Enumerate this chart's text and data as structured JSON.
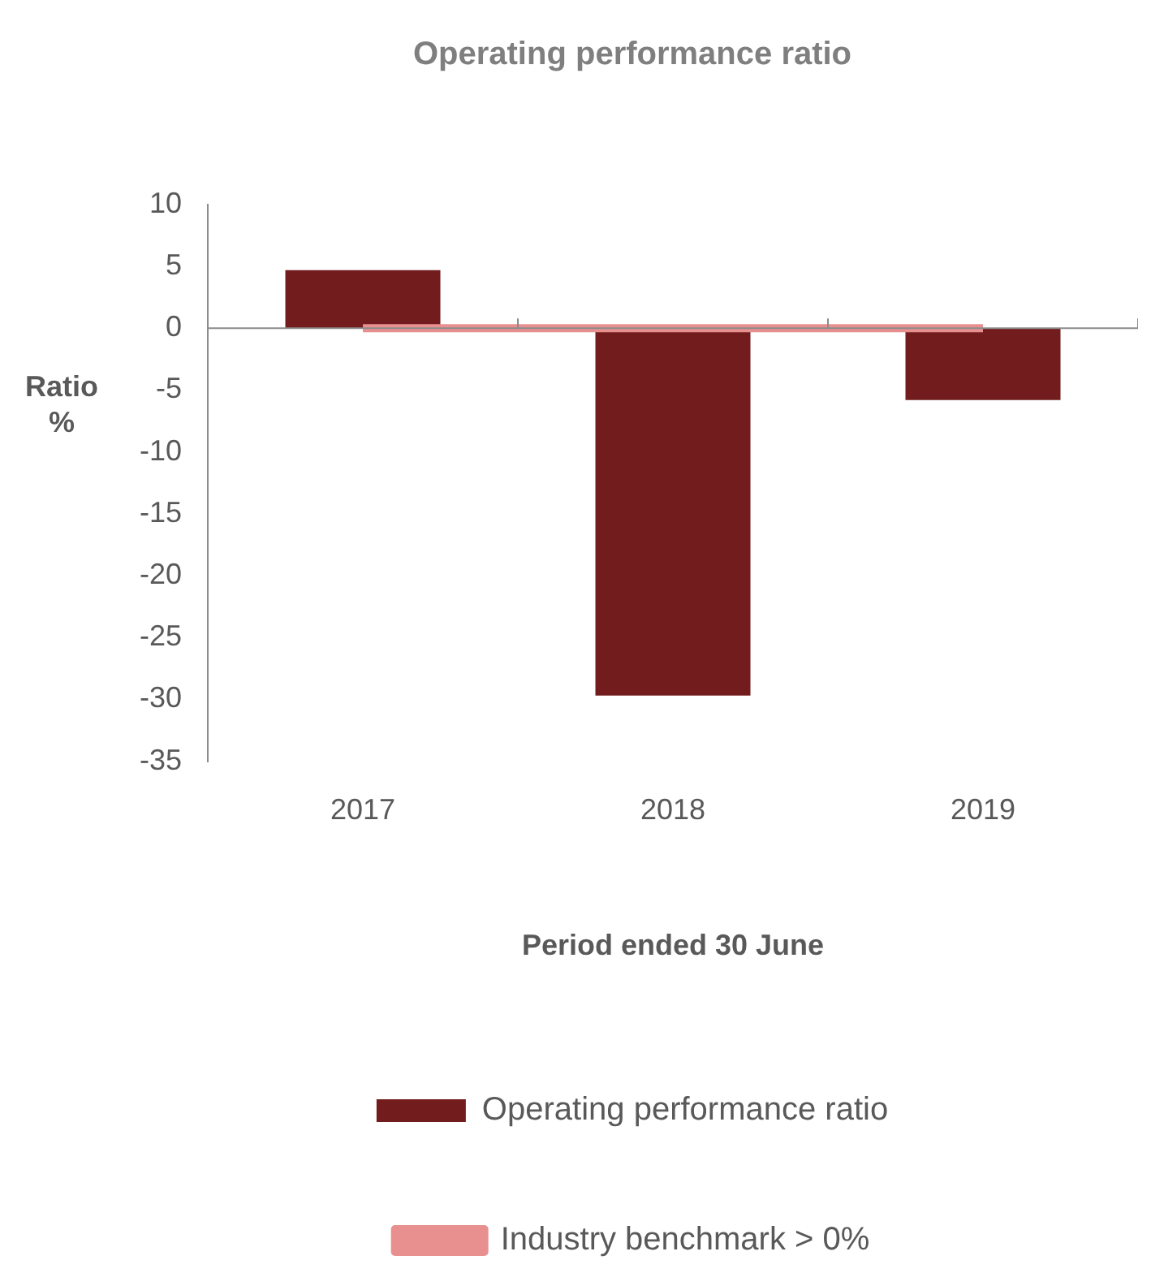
{
  "chart_data": {
    "type": "bar",
    "title": "Operating performance ratio",
    "xlabel": "Period ended 30 June",
    "ylabel": "Ratio %",
    "categories": [
      "2017",
      "2018",
      "2019"
    ],
    "series": [
      {
        "name": "Operating performance ratio",
        "color": "#721c1e",
        "values": [
          4.7,
          -29.7,
          -5.8
        ]
      },
      {
        "name": "Industry benchmark > 0%",
        "type": "line",
        "color": "#e8908f",
        "values": [
          0,
          0,
          0
        ]
      }
    ],
    "ylim": [
      -35,
      10
    ],
    "yticks": [
      -35,
      -30,
      -25,
      -20,
      -15,
      -10,
      -5,
      0,
      5,
      10
    ],
    "legend": "bottom",
    "marker": "none"
  }
}
